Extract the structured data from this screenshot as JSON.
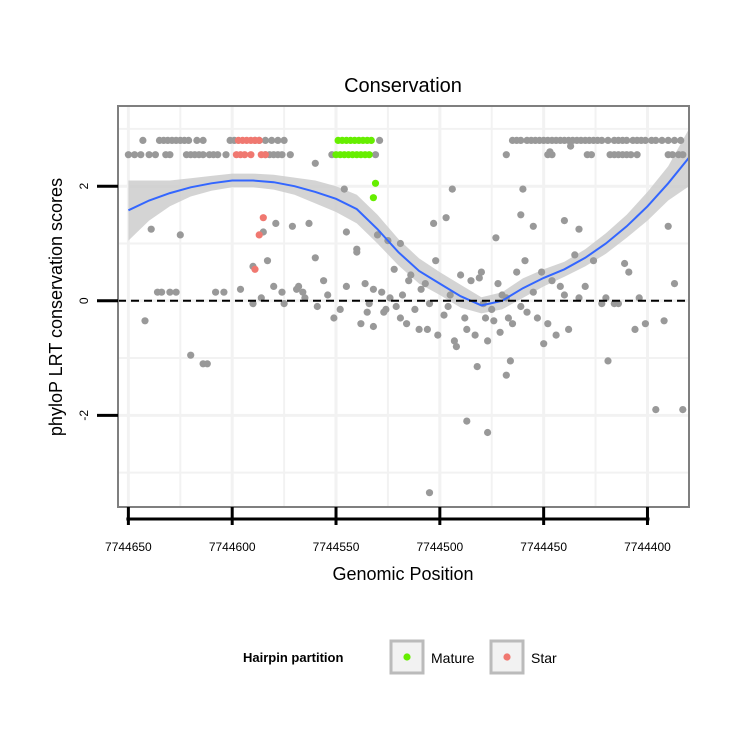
{
  "chart_data": {
    "type": "scatter",
    "title": "Conservation",
    "xlabel": "Genomic Position",
    "ylabel": "phyloP LRT conservation scores",
    "x_reversed": true,
    "xlim": [
      7744655,
      7744380
    ],
    "ylim": [
      -3.6,
      3.4
    ],
    "xticks": [
      7744650,
      7744600,
      7744550,
      7744500,
      7744450,
      7744400
    ],
    "yticks": [
      -2,
      0,
      2
    ],
    "reference_line": {
      "y": 0,
      "style": "dashed"
    },
    "legend": {
      "title": "Hairpin partition",
      "position": "bottom",
      "entries": [
        {
          "label": "Mature",
          "color": "#66ee00"
        },
        {
          "label": "Star",
          "color": "#f07870"
        }
      ]
    },
    "colors": {
      "other": "#999999",
      "smooth": "#3366ff",
      "band": "#cccccc"
    },
    "series": [
      {
        "name": "Other",
        "points": [
          [
            7744650,
            2.55
          ],
          [
            7744647,
            2.55
          ],
          [
            7744644,
            2.55
          ],
          [
            7744643,
            2.8
          ],
          [
            7744640,
            2.55
          ],
          [
            7744637,
            2.55
          ],
          [
            7744635,
            2.8
          ],
          [
            7744633,
            2.8
          ],
          [
            7744631,
            2.8
          ],
          [
            7744629,
            2.8
          ],
          [
            7744627,
            2.8
          ],
          [
            7744625,
            2.8
          ],
          [
            7744623,
            2.8
          ],
          [
            7744621,
            2.8
          ],
          [
            7744617,
            2.8
          ],
          [
            7744614,
            2.8
          ],
          [
            7744632,
            2.55
          ],
          [
            7744630,
            2.55
          ],
          [
            7744622,
            2.55
          ],
          [
            7744620,
            2.55
          ],
          [
            7744618,
            2.55
          ],
          [
            7744616,
            2.55
          ],
          [
            7744614,
            2.55
          ],
          [
            7744611,
            2.55
          ],
          [
            7744609,
            2.55
          ],
          [
            7744607,
            2.55
          ],
          [
            7744601,
            2.8
          ],
          [
            7744599,
            2.8
          ],
          [
            7744603,
            2.55
          ],
          [
            7744589,
            2.8
          ],
          [
            7744587,
            2.8
          ],
          [
            7744584,
            2.8
          ],
          [
            7744581,
            2.8
          ],
          [
            7744578,
            2.8
          ],
          [
            7744575,
            2.8
          ],
          [
            7744584,
            2.55
          ],
          [
            7744582,
            2.55
          ],
          [
            7744580,
            2.55
          ],
          [
            7744578,
            2.55
          ],
          [
            7744576,
            2.55
          ],
          [
            7744572,
            2.55
          ],
          [
            7744552,
            2.55
          ],
          [
            7744529,
            2.8
          ],
          [
            7744531,
            2.55
          ],
          [
            7744465,
            2.8
          ],
          [
            7744463,
            2.8
          ],
          [
            7744461,
            2.8
          ],
          [
            7744458,
            2.8
          ],
          [
            7744456,
            2.8
          ],
          [
            7744454,
            2.8
          ],
          [
            7744452,
            2.8
          ],
          [
            7744450,
            2.8
          ],
          [
            7744448,
            2.8
          ],
          [
            7744446,
            2.8
          ],
          [
            7744444,
            2.8
          ],
          [
            7744442,
            2.8
          ],
          [
            7744440,
            2.8
          ],
          [
            7744438,
            2.8
          ],
          [
            7744436,
            2.8
          ],
          [
            7744434,
            2.8
          ],
          [
            7744432,
            2.8
          ],
          [
            7744430,
            2.8
          ],
          [
            7744428,
            2.8
          ],
          [
            7744426,
            2.8
          ],
          [
            7744424,
            2.8
          ],
          [
            7744422,
            2.8
          ],
          [
            7744419,
            2.8
          ],
          [
            7744416,
            2.8
          ],
          [
            7744414,
            2.8
          ],
          [
            7744412,
            2.8
          ],
          [
            7744410,
            2.8
          ],
          [
            7744407,
            2.8
          ],
          [
            7744405,
            2.8
          ],
          [
            7744403,
            2.8
          ],
          [
            7744401,
            2.8
          ],
          [
            7744398,
            2.8
          ],
          [
            7744396,
            2.8
          ],
          [
            7744393,
            2.8
          ],
          [
            7744390,
            2.8
          ],
          [
            7744387,
            2.8
          ],
          [
            7744384,
            2.8
          ],
          [
            7744468,
            2.55
          ],
          [
            7744448,
            2.55
          ],
          [
            7744446,
            2.55
          ],
          [
            7744429,
            2.55
          ],
          [
            7744427,
            2.55
          ],
          [
            7744418,
            2.55
          ],
          [
            7744416,
            2.55
          ],
          [
            7744414,
            2.55
          ],
          [
            7744412,
            2.55
          ],
          [
            7744410,
            2.55
          ],
          [
            7744408,
            2.55
          ],
          [
            7744405,
            2.55
          ],
          [
            7744390,
            2.55
          ],
          [
            7744388,
            2.55
          ],
          [
            7744385,
            2.55
          ],
          [
            7744383,
            2.55
          ],
          [
            7744642,
            -0.35
          ],
          [
            7744639,
            1.25
          ],
          [
            7744636,
            0.15
          ],
          [
            7744634,
            0.15
          ],
          [
            7744630,
            0.15
          ],
          [
            7744627,
            0.15
          ],
          [
            7744625,
            1.15
          ],
          [
            7744620,
            -0.95
          ],
          [
            7744614,
            -1.1
          ],
          [
            7744612,
            -1.1
          ],
          [
            7744608,
            0.15
          ],
          [
            7744596,
            0.2
          ],
          [
            7744590,
            -0.05
          ],
          [
            7744586,
            0.05
          ],
          [
            7744585,
            1.2
          ],
          [
            7744583,
            0.7
          ],
          [
            7744580,
            0.25
          ],
          [
            7744579,
            1.35
          ],
          [
            7744576,
            0.15
          ],
          [
            7744575,
            -0.05
          ],
          [
            7744571,
            1.3
          ],
          [
            7744569,
            0.2
          ],
          [
            7744568,
            0.25
          ],
          [
            7744566,
            0.15
          ],
          [
            7744565,
            0.05
          ],
          [
            7744563,
            1.35
          ],
          [
            7744560,
            0.75
          ],
          [
            7744559,
            -0.1
          ],
          [
            7744556,
            0.35
          ],
          [
            7744554,
            0.1
          ],
          [
            7744551,
            -0.3
          ],
          [
            7744548,
            -0.15
          ],
          [
            7744546,
            1.95
          ],
          [
            7744545,
            0.25
          ],
          [
            7744540,
            0.9
          ],
          [
            7744538,
            -0.4
          ],
          [
            7744536,
            0.3
          ],
          [
            7744534,
            -0.05
          ],
          [
            7744532,
            0.2
          ],
          [
            7744530,
            1.15
          ],
          [
            7744528,
            0.15
          ],
          [
            7744527,
            -0.2
          ],
          [
            7744526,
            -0.15
          ],
          [
            7744524,
            0.05
          ],
          [
            7744522,
            0.55
          ],
          [
            7744521,
            -0.1
          ],
          [
            7744519,
            -0.3
          ],
          [
            7744518,
            0.1
          ],
          [
            7744516,
            -0.4
          ],
          [
            7744515,
            0.35
          ],
          [
            7744512,
            -0.15
          ],
          [
            7744510,
            -0.5
          ],
          [
            7744509,
            0.2
          ],
          [
            7744507,
            0.3
          ],
          [
            7744506,
            -0.5
          ],
          [
            7744505,
            -0.05
          ],
          [
            7744503,
            1.35
          ],
          [
            7744502,
            0.7
          ],
          [
            7744501,
            -0.6
          ],
          [
            7744498,
            -0.25
          ],
          [
            7744497,
            1.45
          ],
          [
            7744496,
            -0.1
          ],
          [
            7744495,
            0.1
          ],
          [
            7744493,
            -0.7
          ],
          [
            7744492,
            -0.8
          ],
          [
            7744490,
            0.45
          ],
          [
            7744488,
            -0.3
          ],
          [
            7744487,
            -0.5
          ],
          [
            7744485,
            0.35
          ],
          [
            7744483,
            -0.6
          ],
          [
            7744482,
            -1.15
          ],
          [
            7744481,
            0.4
          ],
          [
            7744480,
            0.5
          ],
          [
            7744479,
            -0.05
          ],
          [
            7744478,
            -0.3
          ],
          [
            7744477,
            -0.7
          ],
          [
            7744475,
            -0.15
          ],
          [
            7744474,
            -0.35
          ],
          [
            7744472,
            0.3
          ],
          [
            7744471,
            -0.55
          ],
          [
            7744470,
            0.1
          ],
          [
            7744468,
            0.05
          ],
          [
            7744467,
            -0.3
          ],
          [
            7744465,
            -0.4
          ],
          [
            7744463,
            0.5
          ],
          [
            7744461,
            -0.1
          ],
          [
            7744459,
            0.7
          ],
          [
            7744458,
            -0.2
          ],
          [
            7744455,
            0.15
          ],
          [
            7744453,
            -0.3
          ],
          [
            7744451,
            0.5
          ],
          [
            7744450,
            -0.75
          ],
          [
            7744448,
            -0.4
          ],
          [
            7744446,
            0.35
          ],
          [
            7744444,
            -0.6
          ],
          [
            7744442,
            0.25
          ],
          [
            7744440,
            0.1
          ],
          [
            7744438,
            -0.5
          ],
          [
            7744435,
            0.8
          ],
          [
            7744433,
            0.05
          ],
          [
            7744430,
            0.25
          ],
          [
            7744426,
            0.7
          ],
          [
            7744422,
            -0.05
          ],
          [
            7744420,
            0.05
          ],
          [
            7744419,
            -1.05
          ],
          [
            7744416,
            -0.05
          ],
          [
            7744414,
            -0.05
          ],
          [
            7744411,
            0.65
          ],
          [
            7744409,
            0.5
          ],
          [
            7744406,
            -0.5
          ],
          [
            7744404,
            0.05
          ],
          [
            7744401,
            -0.4
          ],
          [
            7744396,
            -1.9
          ],
          [
            7744392,
            -0.35
          ],
          [
            7744390,
            1.3
          ],
          [
            7744387,
            0.3
          ],
          [
            7744383,
            -1.9
          ],
          [
            7744505,
            -3.35
          ],
          [
            7744494,
            1.95
          ],
          [
            7744487,
            -2.1
          ],
          [
            7744477,
            -2.3
          ],
          [
            7744473,
            1.1
          ],
          [
            7744468,
            -1.3
          ],
          [
            7744466,
            -1.05
          ],
          [
            7744461,
            1.5
          ],
          [
            7744460,
            1.95
          ],
          [
            7744455,
            1.3
          ],
          [
            7744447,
            2.6
          ],
          [
            7744440,
            1.4
          ],
          [
            7744437,
            2.7
          ],
          [
            7744433,
            1.25
          ],
          [
            7744560,
            2.4
          ],
          [
            7744590,
            0.6
          ],
          [
            7744604,
            0.15
          ],
          [
            7744545,
            1.2
          ],
          [
            7744519,
            1.0
          ],
          [
            7744532,
            -0.45
          ],
          [
            7744525,
            1.05
          ],
          [
            7744535,
            -0.2
          ],
          [
            7744540,
            0.85
          ],
          [
            7744514,
            0.45
          ]
        ]
      },
      {
        "name": "Mature",
        "points": [
          [
            7744549,
            2.8
          ],
          [
            7744547,
            2.8
          ],
          [
            7744545,
            2.8
          ],
          [
            7744543,
            2.8
          ],
          [
            7744541,
            2.8
          ],
          [
            7744539,
            2.8
          ],
          [
            7744537,
            2.8
          ],
          [
            7744535,
            2.8
          ],
          [
            7744533,
            2.8
          ],
          [
            7744550,
            2.55
          ],
          [
            7744548,
            2.55
          ],
          [
            7744546,
            2.55
          ],
          [
            7744544,
            2.55
          ],
          [
            7744542,
            2.55
          ],
          [
            7744540,
            2.55
          ],
          [
            7744538,
            2.55
          ],
          [
            7744536,
            2.55
          ],
          [
            7744534,
            2.55
          ],
          [
            7744531,
            2.05
          ],
          [
            7744532,
            1.8
          ]
        ]
      },
      {
        "name": "Star",
        "points": [
          [
            7744597,
            2.8
          ],
          [
            7744595,
            2.8
          ],
          [
            7744593,
            2.8
          ],
          [
            7744591,
            2.8
          ],
          [
            7744589,
            2.8
          ],
          [
            7744587,
            2.8
          ],
          [
            7744598,
            2.55
          ],
          [
            7744596,
            2.55
          ],
          [
            7744594,
            2.55
          ],
          [
            7744591,
            2.55
          ],
          [
            7744586,
            2.55
          ],
          [
            7744584,
            2.55
          ],
          [
            7744585,
            1.45
          ],
          [
            7744587,
            1.15
          ],
          [
            7744589,
            0.55
          ]
        ]
      }
    ],
    "smooth": {
      "x": [
        7744650,
        7744640,
        7744630,
        7744620,
        7744610,
        7744600,
        7744590,
        7744580,
        7744570,
        7744560,
        7744550,
        7744540,
        7744530,
        7744520,
        7744510,
        7744500,
        7744490,
        7744480,
        7744470,
        7744460,
        7744450,
        7744440,
        7744430,
        7744420,
        7744410,
        7744400,
        7744390,
        7744380
      ],
      "y": [
        1.58,
        1.75,
        1.88,
        1.98,
        2.05,
        2.1,
        2.1,
        2.07,
        2.0,
        1.9,
        1.78,
        1.6,
        1.25,
        0.85,
        0.52,
        0.3,
        0.08,
        -0.08,
        0.0,
        0.22,
        0.4,
        0.55,
        0.75,
        1.0,
        1.3,
        1.65,
        2.05,
        2.5
      ],
      "lower": [
        1.05,
        1.4,
        1.65,
        1.82,
        1.92,
        1.98,
        1.98,
        1.94,
        1.85,
        1.7,
        1.55,
        1.35,
        1.0,
        0.62,
        0.3,
        0.1,
        -0.12,
        -0.22,
        -0.15,
        0.05,
        0.25,
        0.42,
        0.6,
        0.82,
        1.1,
        1.4,
        1.75,
        2.0
      ],
      "upper": [
        2.1,
        2.1,
        2.1,
        2.14,
        2.18,
        2.22,
        2.22,
        2.2,
        2.15,
        2.1,
        2.0,
        1.85,
        1.5,
        1.08,
        0.74,
        0.5,
        0.28,
        0.06,
        0.15,
        0.39,
        0.55,
        0.68,
        0.9,
        1.18,
        1.5,
        1.9,
        2.35,
        3.0
      ]
    }
  }
}
